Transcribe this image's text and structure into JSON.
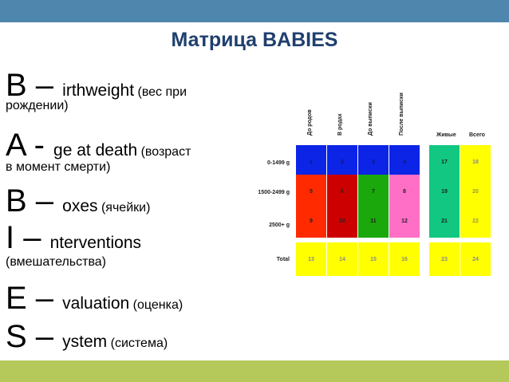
{
  "slide": {
    "title": "Матрица BABIES",
    "acronym": [
      {
        "letter": "B",
        "dash": " – ",
        "rest": "irthweight",
        "gloss": " (вес при",
        "gloss_cont": "рождении)"
      },
      {
        "letter": "A",
        "dash": " - ",
        "rest": "ge at death",
        "gloss": " (возраст",
        "gloss_cont": "в момент смерти)"
      },
      {
        "letter": "B",
        "dash": " – ",
        "rest": "oxes",
        "gloss": " (ячейки)",
        "gloss_cont": ""
      },
      {
        "letter": "I",
        "dash": " – ",
        "rest": "nterventions",
        "gloss": "",
        "gloss_cont": "(вмешательства)"
      },
      {
        "letter": "E",
        "dash": " – ",
        "rest": "valuation",
        "gloss": " (оценка)",
        "gloss_cont": ""
      },
      {
        "letter": "S",
        "dash": " – ",
        "rest": "ystem",
        "gloss": " (система)",
        "gloss_cont": ""
      }
    ]
  },
  "matrix": {
    "column_headers": [
      "До родов",
      "В родах",
      "До выписки",
      "После выписки"
    ],
    "extra_headers": [
      "Живые",
      "Всего"
    ],
    "row_headers": [
      "0-1499 g",
      "1500-2499 g",
      "2500+ g",
      "Total"
    ],
    "cells": [
      [
        "1",
        "2",
        "3",
        "4",
        "17",
        "18"
      ],
      [
        "5",
        "6",
        "7",
        "8",
        "19",
        "20"
      ],
      [
        "9",
        "10",
        "11",
        "12",
        "21",
        "22"
      ],
      [
        "13",
        "14",
        "15",
        "16",
        "23",
        "24"
      ]
    ],
    "colors": {
      "blue": "#0b24e6",
      "red": "#ff2a00",
      "dark_red": "#cc0000",
      "green": "#1aa80c",
      "pink": "#ff6fc6",
      "teal": "#12c782",
      "yellow": "#ffff00",
      "header_bar": "#4f86ad",
      "footer_bar": "#b4c95a",
      "title": "#1f3f6e"
    }
  }
}
